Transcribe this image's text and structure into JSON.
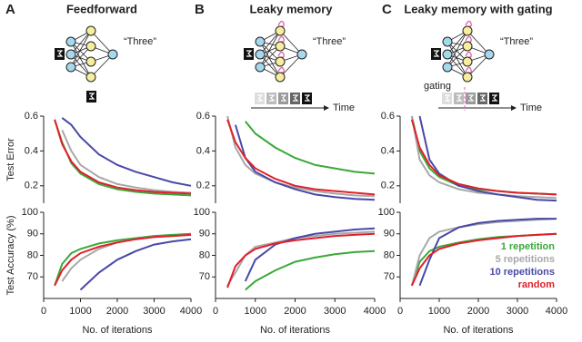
{
  "diagrams": [
    {
      "panel": "A",
      "title": "Feedforward",
      "output": "“Three”"
    },
    {
      "panel": "B",
      "title": "Leaky memory",
      "output": "“Three”",
      "axis": "Time"
    },
    {
      "panel": "C",
      "title": "Leaky memory with gating",
      "output": "“Three”",
      "axis": "Time",
      "gate": "gating"
    }
  ],
  "chart_data": [
    {
      "type": "line",
      "ylabel": "Test Error",
      "x": [
        300,
        500,
        750,
        1000,
        1500,
        2000,
        2500,
        3000,
        3500,
        4000
      ],
      "xlim": [
        0,
        4000
      ],
      "ylim": [
        0.1,
        0.6
      ],
      "yticks": [
        0.2,
        0.4,
        0.6
      ],
      "series": [
        {
          "color": "#3aa83a",
          "values": [
            0.58,
            0.45,
            0.33,
            0.27,
            0.21,
            0.18,
            0.165,
            0.155,
            0.15,
            0.145
          ]
        },
        {
          "color": "#a8a8a8",
          "values": [
            null,
            0.52,
            0.4,
            0.32,
            0.25,
            0.21,
            0.19,
            0.175,
            0.165,
            0.16
          ]
        },
        {
          "color": "#4848a8",
          "values": [
            null,
            0.59,
            0.55,
            0.48,
            0.38,
            0.32,
            0.28,
            0.25,
            0.22,
            0.2
          ]
        },
        {
          "color": "#e0202a",
          "values": [
            0.58,
            0.44,
            0.34,
            0.28,
            0.22,
            0.19,
            0.175,
            0.165,
            0.16,
            0.155
          ]
        }
      ]
    },
    {
      "type": "line",
      "ylabel": "Test Accuracy (%)",
      "xlabel": "No. of iterations",
      "x": [
        300,
        500,
        750,
        1000,
        1500,
        2000,
        2500,
        3000,
        3500,
        4000
      ],
      "xlim": [
        0,
        4000
      ],
      "xticks": [
        0,
        1000,
        2000,
        3000,
        4000
      ],
      "ylim": [
        60,
        100
      ],
      "yticks": [
        70,
        80,
        90,
        100
      ],
      "series": [
        {
          "color": "#3aa83a",
          "values": [
            66,
            76,
            81,
            83,
            85.5,
            87,
            88,
            89,
            89.5,
            90
          ]
        },
        {
          "color": "#a8a8a8",
          "values": [
            null,
            68,
            74,
            78,
            83,
            86,
            87.5,
            88.5,
            89,
            89.5
          ]
        },
        {
          "color": "#4848a8",
          "values": [
            null,
            null,
            null,
            64,
            72,
            78,
            82,
            85,
            86.5,
            87.5
          ]
        },
        {
          "color": "#e0202a",
          "values": [
            66,
            73,
            78,
            81,
            84,
            86,
            87.5,
            88.5,
            89,
            89.5
          ]
        }
      ]
    },
    {
      "type": "line",
      "x": [
        300,
        500,
        750,
        1000,
        1500,
        2000,
        2500,
        3000,
        3500,
        4000
      ],
      "xlim": [
        0,
        4000
      ],
      "ylim": [
        0.1,
        0.6
      ],
      "yticks": [
        0.2,
        0.4,
        0.6
      ],
      "series": [
        {
          "color": "#3aa83a",
          "values": [
            null,
            null,
            0.57,
            0.5,
            0.42,
            0.36,
            0.32,
            0.3,
            0.28,
            0.27
          ]
        },
        {
          "color": "#a8a8a8",
          "values": [
            0.6,
            0.42,
            0.32,
            0.27,
            0.22,
            0.19,
            0.17,
            0.155,
            0.145,
            0.14
          ]
        },
        {
          "color": "#4848a8",
          "values": [
            null,
            0.55,
            0.36,
            0.28,
            0.22,
            0.18,
            0.15,
            0.135,
            0.125,
            0.12
          ]
        },
        {
          "color": "#e0202a",
          "values": [
            0.58,
            0.45,
            0.36,
            0.3,
            0.24,
            0.2,
            0.18,
            0.17,
            0.16,
            0.15
          ]
        }
      ]
    },
    {
      "type": "line",
      "xlabel": "No. of iterations",
      "x": [
        300,
        500,
        750,
        1000,
        1500,
        2000,
        2500,
        3000,
        3500,
        4000
      ],
      "xlim": [
        0,
        4000
      ],
      "xticks": [
        0,
        1000,
        2000,
        3000,
        4000
      ],
      "ylim": [
        60,
        100
      ],
      "yticks": [
        70,
        80,
        90,
        100
      ],
      "series": [
        {
          "color": "#3aa83a",
          "values": [
            null,
            null,
            64,
            68,
            73,
            77,
            79,
            80.5,
            81.5,
            82
          ]
        },
        {
          "color": "#a8a8a8",
          "values": [
            66,
            72,
            80,
            84,
            86,
            88,
            89,
            90,
            90.5,
            91
          ]
        },
        {
          "color": "#4848a8",
          "values": [
            null,
            null,
            68,
            78,
            85,
            88,
            90,
            91,
            92,
            92.5
          ]
        },
        {
          "color": "#e0202a",
          "values": [
            65,
            75,
            80,
            83,
            85.5,
            87,
            88,
            89,
            89.5,
            90
          ]
        }
      ]
    },
    {
      "type": "line",
      "x": [
        300,
        500,
        750,
        1000,
        1500,
        2000,
        2500,
        3000,
        3500,
        4000
      ],
      "xlim": [
        0,
        4000
      ],
      "ylim": [
        0.1,
        0.6
      ],
      "yticks": [
        0.2,
        0.4,
        0.6
      ],
      "series": [
        {
          "color": "#3aa83a",
          "values": [
            0.6,
            0.4,
            0.3,
            0.25,
            0.2,
            0.18,
            0.17,
            0.16,
            0.155,
            0.15
          ]
        },
        {
          "color": "#a8a8a8",
          "values": [
            0.6,
            0.35,
            0.26,
            0.22,
            0.18,
            0.16,
            0.15,
            0.14,
            0.135,
            0.13
          ]
        },
        {
          "color": "#4848a8",
          "values": [
            null,
            0.6,
            0.35,
            0.27,
            0.2,
            0.17,
            0.15,
            0.135,
            0.12,
            0.115
          ]
        },
        {
          "color": "#e0202a",
          "values": [
            0.58,
            0.42,
            0.32,
            0.26,
            0.21,
            0.185,
            0.17,
            0.16,
            0.155,
            0.15
          ]
        }
      ]
    },
    {
      "type": "line",
      "xlabel": "No. of iterations",
      "x": [
        300,
        500,
        750,
        1000,
        1500,
        2000,
        2500,
        3000,
        3500,
        4000
      ],
      "xlim": [
        0,
        4000
      ],
      "xticks": [
        0,
        1000,
        2000,
        3000,
        4000
      ],
      "ylim": [
        60,
        100
      ],
      "yticks": [
        70,
        80,
        90,
        100
      ],
      "legend": "right",
      "series": [
        {
          "name": "1 repetition",
          "color": "#3aa83a",
          "values": [
            66,
            77,
            82,
            84,
            86,
            87.5,
            88.5,
            89,
            89.5,
            90
          ]
        },
        {
          "name": "5 repetitions",
          "color": "#a8a8a8",
          "values": [
            66,
            80,
            88,
            91,
            93,
            94.5,
            95.5,
            96,
            96.5,
            97
          ]
        },
        {
          "name": "10 repetitions",
          "color": "#4848a8",
          "values": [
            null,
            66,
            78,
            88,
            93,
            95,
            96,
            96.5,
            97,
            97
          ]
        },
        {
          "name": "random",
          "color": "#e0202a",
          "values": [
            66,
            74,
            80,
            83,
            85.5,
            87,
            88,
            89,
            89.5,
            90
          ]
        }
      ]
    }
  ]
}
